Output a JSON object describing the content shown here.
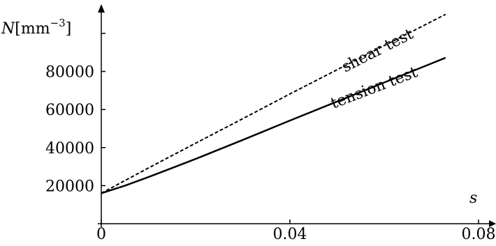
{
  "chart_data": {
    "type": "line",
    "xlabel": "s",
    "ylabel": {
      "var": "N",
      "unit": "[mm",
      "exp": "−3",
      "close": "]"
    },
    "xlim": [
      0,
      0.08
    ],
    "ylim": [
      0,
      110000
    ],
    "x_ticks": [
      {
        "value": 0,
        "label": "0"
      },
      {
        "value": 0.04,
        "label": "0.04"
      },
      {
        "value": 0.08,
        "label": "0.08"
      }
    ],
    "y_ticks": [
      {
        "value": 20000,
        "label": "20000"
      },
      {
        "value": 40000,
        "label": "40000"
      },
      {
        "value": 60000,
        "label": "60000"
      },
      {
        "value": 80000,
        "label": "80000"
      },
      {
        "value": 100000,
        "label": ""
      }
    ],
    "grid": false,
    "series": [
      {
        "name": "shear test",
        "style": "dashed",
        "x": [
          0,
          0.01,
          0.02,
          0.03,
          0.04,
          0.05,
          0.06,
          0.07,
          0.073
        ],
        "y": [
          16000,
          29300,
          42300,
          55200,
          68200,
          80900,
          93600,
          106200,
          110000
        ]
      },
      {
        "name": "tension test",
        "style": "solid",
        "x": [
          0,
          0.005,
          0.01,
          0.02,
          0.03,
          0.04,
          0.05,
          0.06,
          0.07,
          0.073
        ],
        "y": [
          16000,
          20000,
          24500,
          34000,
          44000,
          54200,
          64200,
          74200,
          84200,
          87200
        ]
      }
    ]
  }
}
